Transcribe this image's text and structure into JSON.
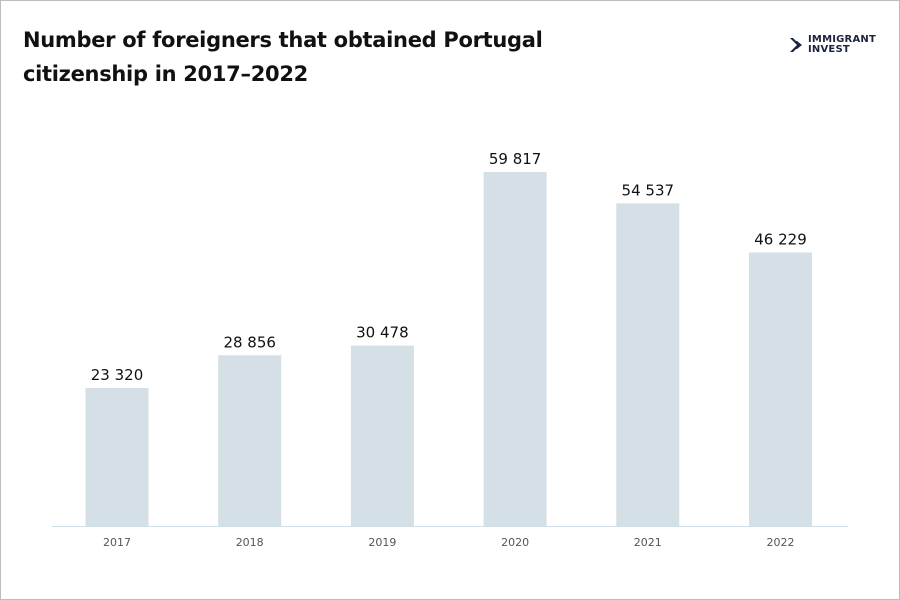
{
  "chart_data": {
    "type": "bar",
    "title": "Number of foreigners that obtained Portugal citizenship in 2017–2022",
    "categories": [
      "2017",
      "2018",
      "2019",
      "2020",
      "2021",
      "2022"
    ],
    "values": [
      23320,
      28856,
      30478,
      59817,
      54537,
      46229
    ],
    "data_labels": [
      "23 320",
      "28 856",
      "30 478",
      "59 817",
      "54 537",
      "46 229"
    ],
    "xlabel": "",
    "ylabel": "",
    "ylim": [
      0,
      60000
    ],
    "grid": false,
    "colors": {
      "bar": "#d5dfe6",
      "axis": "#cfdde6",
      "label": "#111111",
      "tick": "#555555"
    }
  },
  "logo": {
    "text": "IMMIGRANT INVEST",
    "color": "#1b2340"
  }
}
